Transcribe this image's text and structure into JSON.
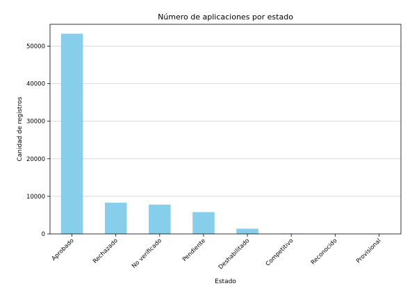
{
  "chart_data": {
    "type": "bar",
    "title": "Número de aplicaciones por estado",
    "xlabel": "Estado",
    "ylabel": "Canidad de registros",
    "categories": [
      "Aprobado",
      "Rechazado",
      "No verificado",
      "Pendiente",
      "Deshabilitado",
      "Competitivo",
      "Reconocido",
      "Provisional"
    ],
    "values": [
      53300,
      8300,
      7800,
      5800,
      1400,
      100,
      40,
      20
    ],
    "ylim": [
      0,
      55800
    ],
    "yticks": [
      0,
      10000,
      20000,
      30000,
      40000,
      50000
    ],
    "grid": true,
    "bar_color": "#87ceeb",
    "grid_color": "#cfcfcf"
  }
}
